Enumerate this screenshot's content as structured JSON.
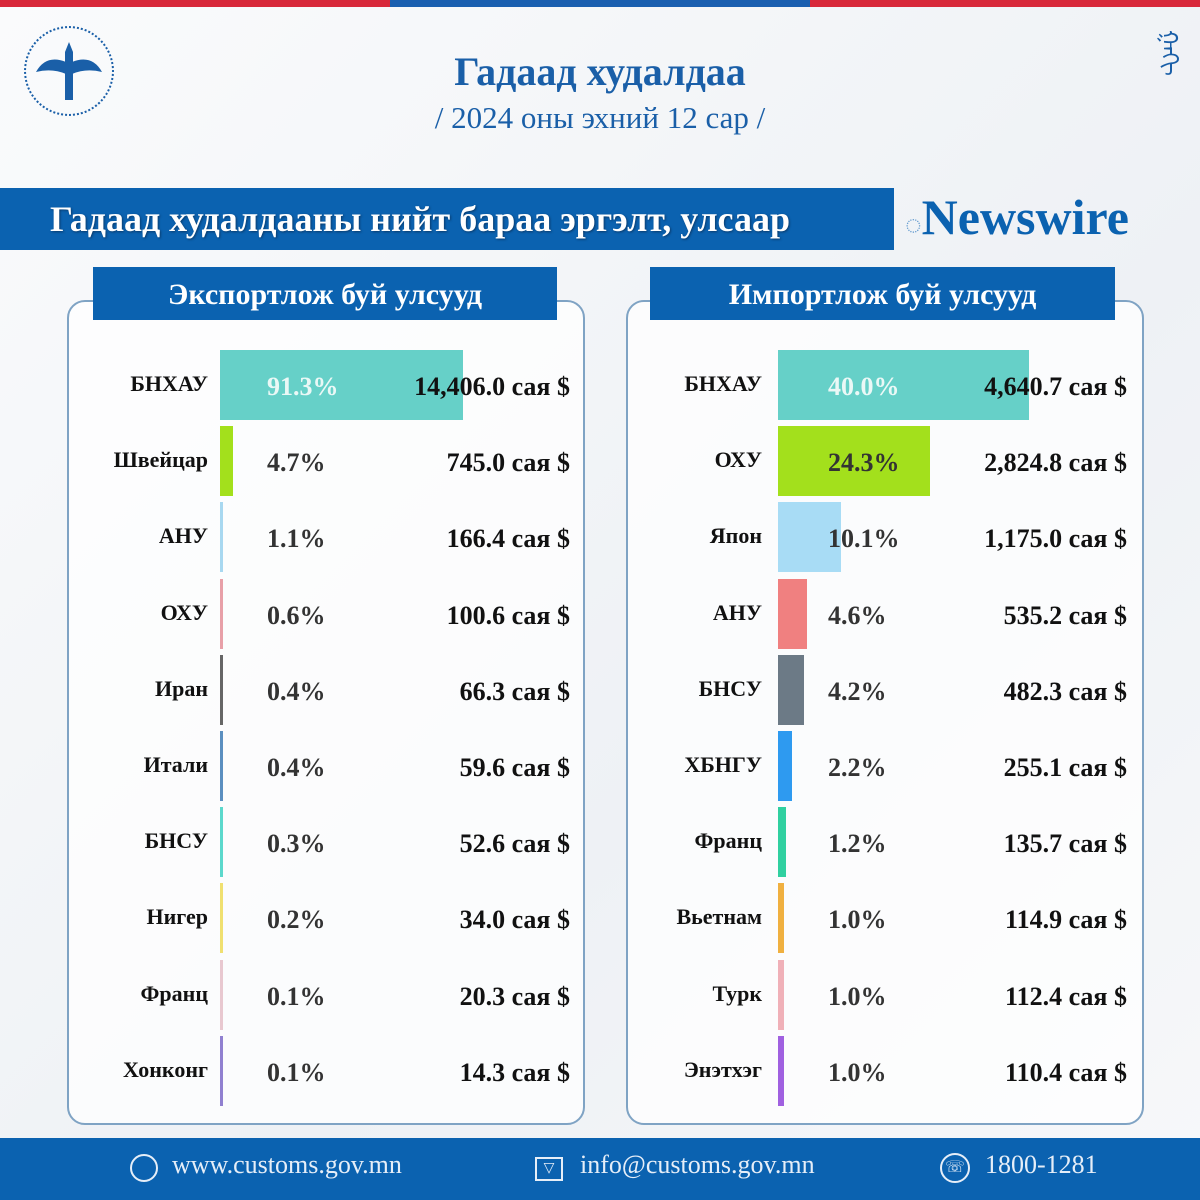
{
  "header": {
    "title": "Гадаад худалдаа",
    "subtitle": "/ 2024 оны эхний  12 сар /",
    "banner": "Гадаад худалдааны нийт бараа эргэлт, улсаар"
  },
  "colors": {
    "brand_blue": "#0b62b0",
    "stripe_red": "#d8283a"
  },
  "chart_data": [
    {
      "type": "bar",
      "orientation": "horizontal",
      "title": "Экспортлож буй улсууд",
      "unit": "сая $",
      "categories": [
        "БНХАУ",
        "Швейцар",
        "АНУ",
        "ОХУ",
        "Иран",
        "Итали",
        "БНСУ",
        "Нигер",
        "Франц",
        "Хонконг"
      ],
      "percent": [
        "91.3%",
        "4.7%",
        "1.1%",
        "0.6%",
        "0.4%",
        "0.4%",
        "0.3%",
        "0.2%",
        "0.1%",
        "0.1%"
      ],
      "values": [
        "14,406.0  сая $",
        "745.0 сая $",
        "166.4 сая $",
        "100.6 сая $",
        "66.3 сая $",
        "59.6 сая $",
        "52.6 сая $",
        "34.0 сая $",
        "20.3 сая $",
        "14.3 сая $"
      ],
      "share": [
        91.3,
        4.7,
        1.1,
        0.6,
        0.4,
        0.4,
        0.3,
        0.2,
        0.1,
        0.1
      ],
      "colors": [
        "#66d0c8",
        "#a3e01c",
        "#a8d8f0",
        "#e8a0a8",
        "#666666",
        "#5b8fc0",
        "#5cd8cc",
        "#f0e070",
        "#e8c8d0",
        "#9080d0"
      ]
    },
    {
      "type": "bar",
      "orientation": "horizontal",
      "title": "Импортлож буй улсууд",
      "unit": "сая $",
      "categories": [
        "БНХАУ",
        "ОХУ",
        "Япон",
        "АНУ",
        "БНСУ",
        "ХБНГУ",
        "Франц",
        "Вьетнам",
        "Турк",
        "Энэтхэг"
      ],
      "percent": [
        "40.0%",
        "24.3%",
        "10.1%",
        "4.6%",
        "4.2%",
        "2.2%",
        "1.2%",
        "1.0%",
        "1.0%",
        "1.0%"
      ],
      "values": [
        "4,640.7 сая $",
        "2,824.8 сая $",
        "1,175.0 сая $",
        "535.2 сая $",
        "482.3 сая $",
        "255.1 сая $",
        "135.7 сая $",
        "114.9 сая $",
        "112.4 сая $",
        "110.4 сая $"
      ],
      "share": [
        40.0,
        24.3,
        10.1,
        4.6,
        4.2,
        2.2,
        1.2,
        1.0,
        1.0,
        1.0
      ],
      "colors": [
        "#66d0c8",
        "#a3e01c",
        "#a8dcf5",
        "#f08080",
        "#6c7a86",
        "#2e9af0",
        "#30d0a0",
        "#f0b040",
        "#f0b0b8",
        "#a060e0"
      ]
    }
  ],
  "footer": {
    "website": "www.customs.gov.mn",
    "email": "info@customs.gov.mn",
    "phone": "1800-1281",
    "watermark": "Newswire"
  }
}
